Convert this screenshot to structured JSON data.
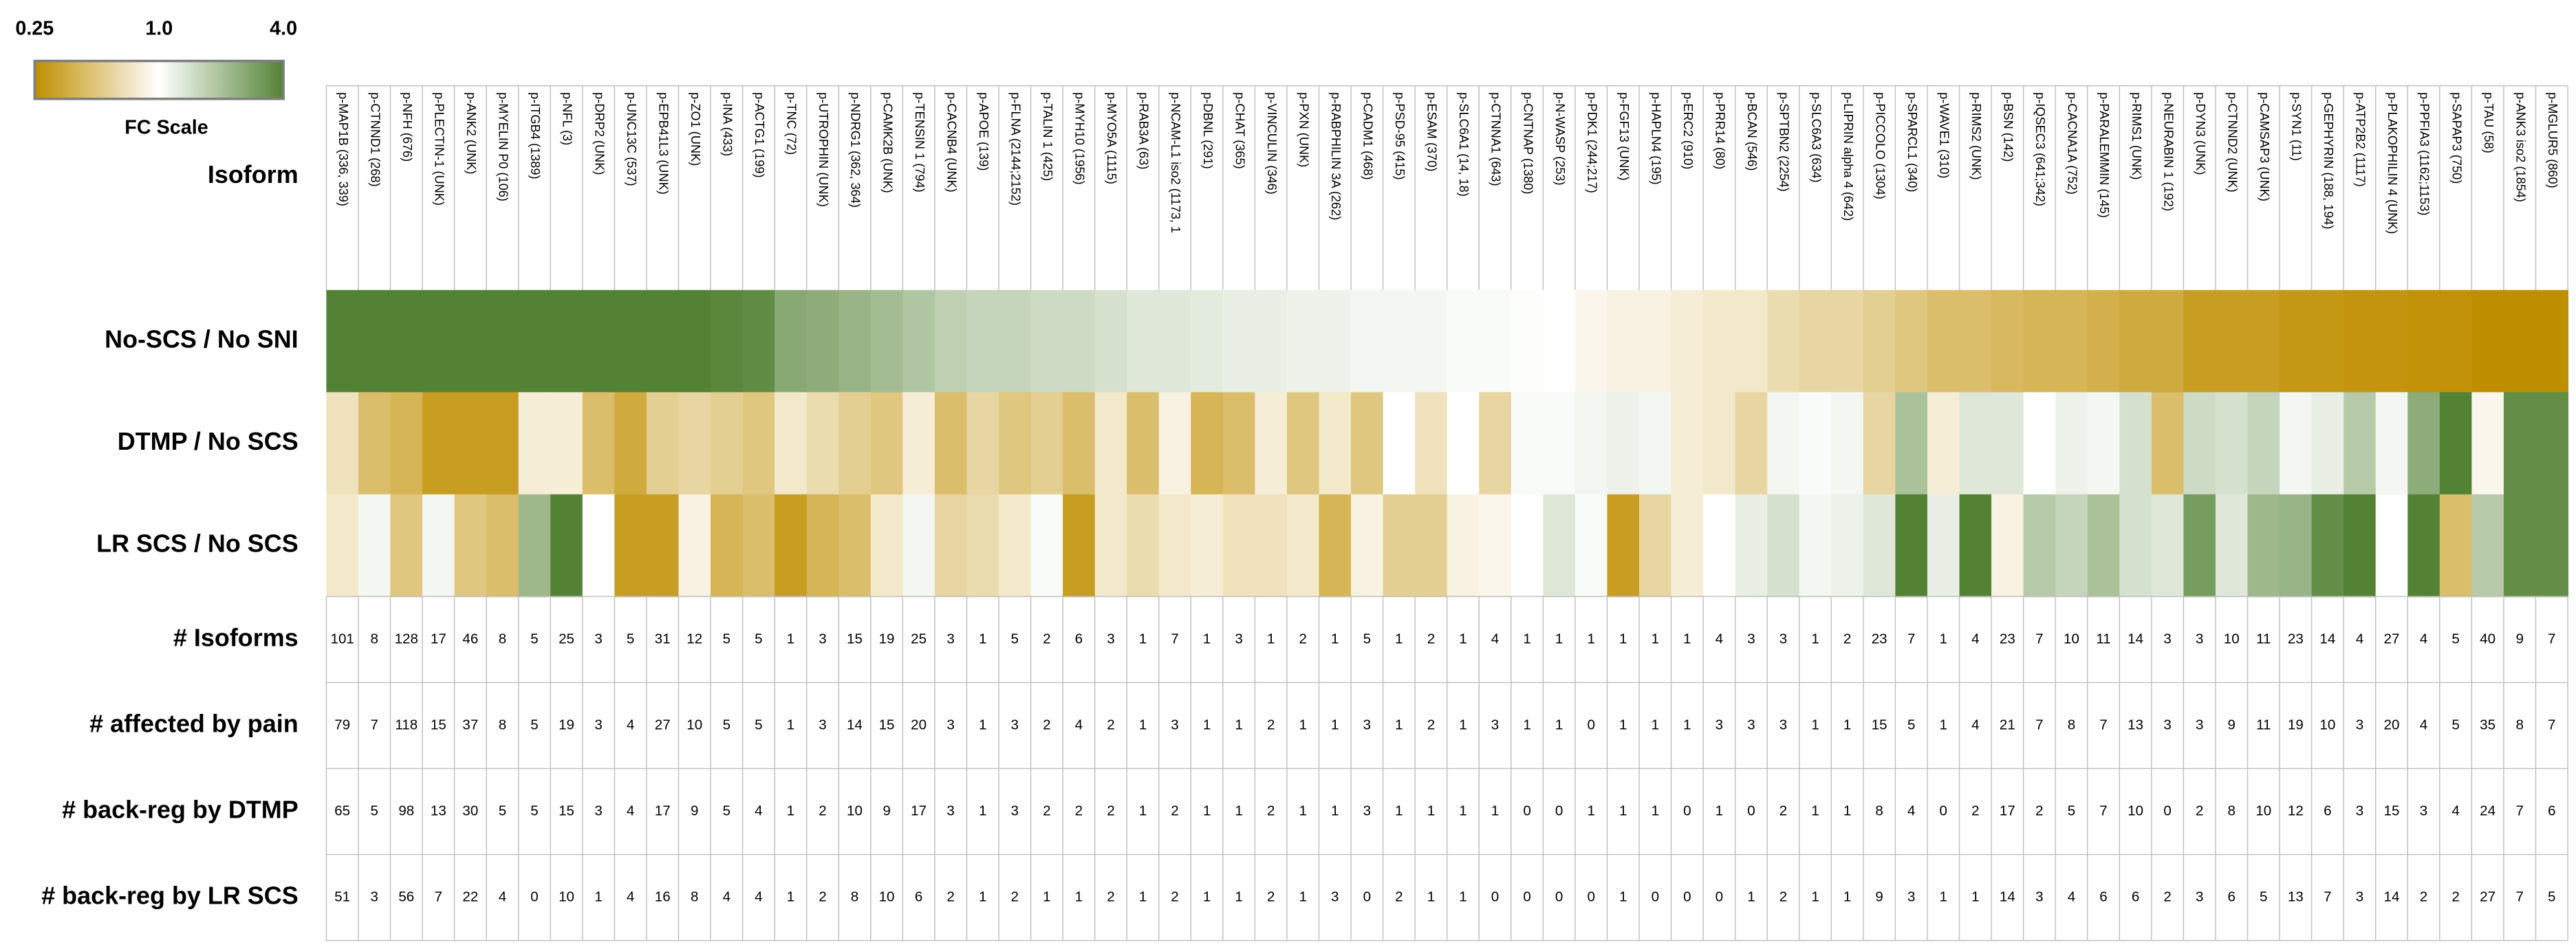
{
  "chart_data": {
    "type": "heatmap",
    "column_header": "Isoform",
    "categories": [
      "p-MAP1B (336, 339)",
      "p-CTNND1 (268)",
      "p-NFH (676)",
      "p-PLECTIN-1 (UNK)",
      "p-ANK2 (UNK)",
      "p-MYELIN P0 (106)",
      "p-ITGB4 (1389)",
      "p-NFL (3)",
      "p-DRP2 (UNK)",
      "p-UNC13C (537)",
      "p-EPB41L3 (UNK)",
      "p-ZO1 (UNK)",
      "p-INA (433)",
      "p-ACTG1 (199)",
      "p-TNC (72)",
      "p-UTROPHIN (UNK)",
      "p-NDRG1 (362, 364)",
      "p-CAMK2B (UNK)",
      "p-TENSIN 1 (794)",
      "p-CACNB4 (UNK)",
      "p-APOE (139)",
      "p-FLNA (2144;2152)",
      "p-TALIN 1 (425)",
      "p-MYH10 (1956)",
      "p-MYO5A (1115)",
      "p-RAB3A (63)",
      "p-NCAM-L1 iso2 (1173, 1",
      "p-DBNL (291)",
      "p-CHAT (365)",
      "p-VINCULIN (346)",
      "p-PXN (UNK)",
      "p-RABPHILIN 3A (262)",
      "p-CADM1 (468)",
      "p-PSD-95 (415)",
      "p-ESAM (370)",
      "p-SLC6A1 (14, 18)",
      "p-CTNNA1 (643)",
      "p-CNTNAP (1380)",
      "p-N-WASP (253)",
      "p-PDK1 (244;217)",
      "p-FGF13 (UNK)",
      "p-HAPLN4 (195)",
      "p-ERC2 (910)",
      "p-PRR14 (80)",
      "p-BCAN (546)",
      "p-SPTBN2 (2254)",
      "p-SLC6A3 (634)",
      "p-LIPRIN alpha 4 (642)",
      "p-PICCOLO (1304)",
      "p-SPARCL1 (340)",
      "p-WAVE1 (310)",
      "p-RIMS2 (UNK)",
      "p-BSN (142)",
      "p-IQSEC3 (641;342)",
      "p-CACNA1A (752)",
      "p-PARALEMMIN (145)",
      "p-RIMS1 (UNK)",
      "p-NEURABIN 1 (192)",
      "p-DYN3 (UNK)",
      "p-CTNND2 (UNK)",
      "p-CAMSAP3 (UNK)",
      "p-SYN1 (11)",
      "p-GEPHYRIN (188, 194)",
      "p-ATP2B2 (1117)",
      "p-PLAKOPHILIN 4 (UNK)",
      "p-PPFIA3 (1162;1153)",
      "p-SAPAP3 (750)",
      "p-TAU (58)",
      "p-ANK3 iso2 (1854)",
      "p-MGLUR5 (860)"
    ],
    "rows": [
      {
        "name": "No-SCS / No SNI",
        "values": [
          4,
          4,
          4,
          4,
          4,
          4,
          4,
          4,
          4,
          4,
          4,
          4,
          3.8,
          3.6,
          2.6,
          2.5,
          2.3,
          2.1,
          1.9,
          1.7,
          1.6,
          1.6,
          1.5,
          1.5,
          1.4,
          1.3,
          1.3,
          1.25,
          1.2,
          1.2,
          1.15,
          1.15,
          1.1,
          1.1,
          1.1,
          1.05,
          1.05,
          1.02,
          1.0,
          0.9,
          0.85,
          0.85,
          0.8,
          0.75,
          0.75,
          0.65,
          0.6,
          0.6,
          0.55,
          0.5,
          0.45,
          0.45,
          0.42,
          0.4,
          0.4,
          0.38,
          0.35,
          0.35,
          0.3,
          0.3,
          0.3,
          0.28,
          0.28,
          0.27,
          0.27,
          0.26,
          0.26,
          0.25,
          0.25,
          0.25
        ]
      },
      {
        "name": "DTMP / No SCS",
        "values": [
          0.7,
          0.45,
          0.4,
          0.3,
          0.3,
          0.3,
          0.8,
          0.8,
          0.45,
          0.35,
          0.55,
          0.6,
          0.55,
          0.5,
          0.75,
          0.65,
          0.55,
          0.5,
          0.8,
          0.45,
          0.6,
          0.5,
          0.55,
          0.45,
          0.75,
          0.45,
          0.85,
          0.4,
          0.45,
          0.8,
          0.5,
          0.75,
          0.5,
          1.0,
          0.7,
          1.0,
          0.6,
          1.05,
          1.05,
          1.1,
          1.15,
          1.1,
          0.8,
          0.75,
          0.6,
          1.1,
          1.05,
          1.1,
          0.6,
          2.0,
          0.8,
          1.3,
          1.3,
          1.0,
          1.15,
          1.1,
          1.4,
          0.45,
          1.5,
          1.4,
          1.6,
          1.1,
          1.2,
          1.8,
          1.1,
          2.5,
          4,
          0.9,
          3.5,
          3.5
        ]
      },
      {
        "name": "LR SCS / No SCS",
        "values": [
          0.75,
          1.1,
          0.5,
          1.1,
          0.5,
          0.45,
          2.2,
          4,
          1.0,
          0.3,
          0.3,
          0.85,
          0.4,
          0.45,
          0.3,
          0.4,
          0.45,
          0.75,
          1.1,
          0.6,
          0.65,
          0.75,
          1.05,
          0.3,
          0.75,
          0.65,
          0.75,
          0.8,
          0.7,
          0.7,
          0.75,
          0.4,
          0.85,
          0.55,
          0.55,
          0.85,
          0.9,
          1.0,
          1.3,
          1.05,
          0.3,
          0.6,
          0.8,
          1.0,
          1.2,
          1.4,
          1.1,
          1.15,
          1.3,
          4,
          1.2,
          4,
          0.85,
          1.8,
          1.6,
          2.0,
          1.4,
          1.3,
          3.0,
          1.3,
          2.2,
          2.3,
          3.5,
          4,
          1.0,
          4,
          0.45,
          1.8,
          3.5,
          3.5
        ]
      }
    ],
    "color_scale": {
      "title": "FC Scale",
      "log": true,
      "lim": [
        0.25,
        4
      ],
      "ticks": [
        0.25,
        {
          "value": 1,
          "label": "1.0"
        },
        {
          "value": 4,
          "label": "4.0"
        }
      ],
      "colors": [
        "#bf8f00",
        "#ffffff",
        "#548235"
      ]
    },
    "table": [
      {
        "name": "# Isoforms",
        "values": [
          101,
          8,
          128,
          17,
          46,
          8,
          5,
          25,
          3,
          5,
          31,
          12,
          5,
          5,
          1,
          3,
          15,
          19,
          25,
          3,
          1,
          5,
          2,
          6,
          3,
          1,
          7,
          1,
          3,
          1,
          2,
          1,
          5,
          1,
          2,
          1,
          4,
          1,
          1,
          1,
          1,
          1,
          1,
          4,
          3,
          3,
          1,
          2,
          23,
          7,
          1,
          4,
          23,
          7,
          10,
          11,
          14,
          3,
          3,
          10,
          11,
          23,
          14,
          4,
          27,
          4,
          5,
          40,
          9,
          7
        ]
      },
      {
        "name": "# affected by pain",
        "values": [
          79,
          7,
          118,
          15,
          37,
          8,
          5,
          19,
          3,
          4,
          27,
          10,
          5,
          5,
          1,
          3,
          14,
          15,
          20,
          3,
          1,
          3,
          2,
          4,
          2,
          1,
          3,
          1,
          1,
          2,
          1,
          1,
          3,
          1,
          2,
          1,
          3,
          1,
          1,
          0,
          1,
          1,
          1,
          3,
          3,
          3,
          1,
          1,
          15,
          5,
          1,
          4,
          21,
          7,
          8,
          7,
          13,
          3,
          3,
          9,
          11,
          19,
          10,
          3,
          20,
          4,
          5,
          35,
          8,
          7
        ]
      },
      {
        "name": "# back-reg by DTMP",
        "values": [
          65,
          5,
          98,
          13,
          30,
          5,
          5,
          15,
          3,
          4,
          17,
          9,
          5,
          4,
          1,
          2,
          10,
          9,
          17,
          3,
          1,
          3,
          2,
          2,
          2,
          1,
          2,
          1,
          1,
          2,
          1,
          1,
          3,
          1,
          1,
          1,
          1,
          0,
          0,
          1,
          1,
          1,
          0,
          1,
          0,
          2,
          1,
          1,
          8,
          4,
          0,
          2,
          17,
          2,
          5,
          7,
          10,
          0,
          2,
          8,
          10,
          12,
          6,
          3,
          15,
          3,
          4,
          24,
          7,
          6
        ]
      },
      {
        "name": "# back-reg by LR SCS",
        "values": [
          51,
          3,
          56,
          7,
          22,
          4,
          0,
          10,
          1,
          4,
          16,
          8,
          4,
          4,
          1,
          2,
          8,
          10,
          6,
          2,
          1,
          2,
          1,
          1,
          2,
          1,
          2,
          1,
          1,
          2,
          1,
          3,
          0,
          2,
          1,
          1,
          0,
          0,
          0,
          0,
          1,
          0,
          0,
          0,
          1,
          2,
          1,
          1,
          9,
          3,
          1,
          1,
          14,
          3,
          4,
          6,
          6,
          2,
          3,
          6,
          5,
          13,
          7,
          3,
          14,
          2,
          2,
          27,
          7,
          5
        ]
      }
    ]
  }
}
